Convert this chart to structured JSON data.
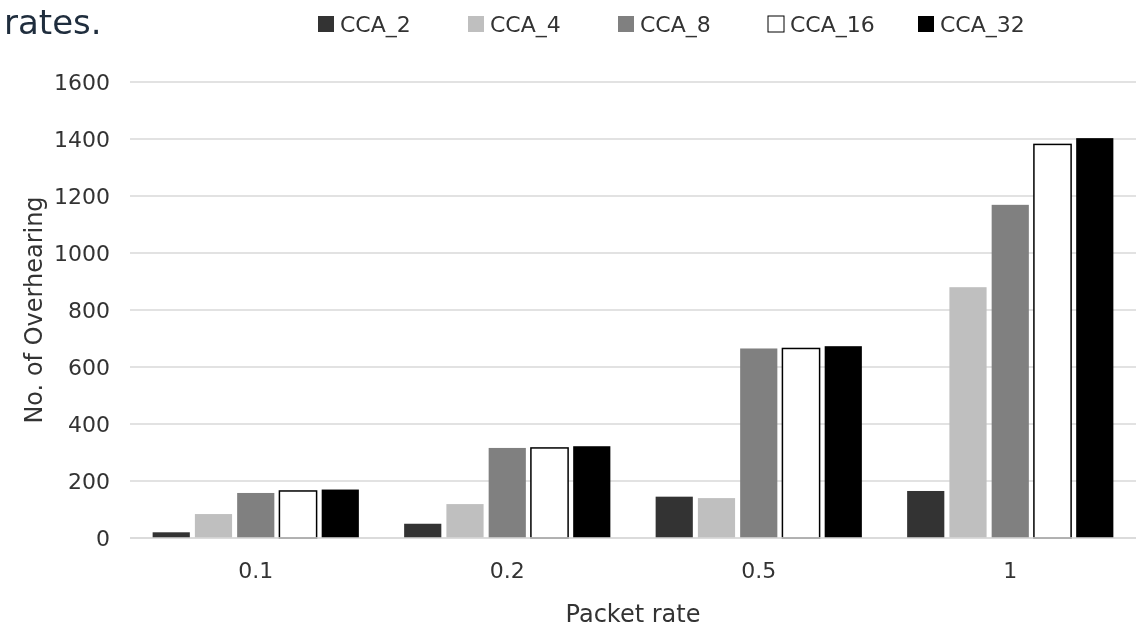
{
  "chart_data": {
    "type": "bar",
    "xlabel": "Packet rate",
    "ylabel": "No. of Overhearing",
    "annotations": [
      "rates."
    ],
    "categories": [
      "0.1",
      "0.2",
      "0.5",
      "1"
    ],
    "series": [
      {
        "name": "CCA_2",
        "color": "#333333",
        "values": [
          20,
          50,
          145,
          165
        ]
      },
      {
        "name": "CCA_4",
        "color": "#bfbfbf",
        "values": [
          84,
          119,
          140,
          880
        ]
      },
      {
        "name": "CCA_8",
        "color": "#808080",
        "values": [
          158,
          316,
          665,
          1169
        ]
      },
      {
        "name": "CCA_16",
        "color": "#ffffff",
        "values": [
          165,
          316,
          665,
          1381
        ]
      },
      {
        "name": "CCA_32",
        "color": "#000000",
        "values": [
          170,
          322,
          673,
          1403
        ]
      }
    ],
    "ylim": [
      0,
      1600
    ],
    "yticks": [
      0,
      200,
      400,
      600,
      800,
      1000,
      1200,
      1400,
      1600
    ],
    "grid": "y",
    "legend": "top"
  }
}
